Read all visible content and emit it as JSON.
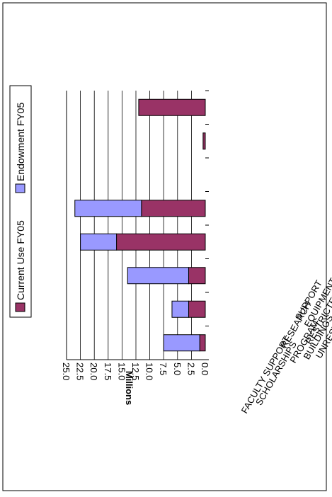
{
  "chart_data": {
    "type": "bar",
    "stacked": true,
    "orientation": "horizontal",
    "page_rotation": "rotated 90 degrees counter-clockwise",
    "ylabel": "Millions",
    "categories": [
      "FACULTY SUPPORT",
      "SCHOLARSHIPS",
      "RESEARCH SUPPORT",
      "PROGRAM SUPPORT",
      "EQUIPMENT",
      "BUILDINGS",
      "RESTRICTED - UNIVERSITY",
      "UNRESTRICTED - COLLEGES"
    ],
    "category_labels_as_printed": [
      "FACULTY SUPPORT",
      "SCHOLARSHIPS",
      "RESEARCH",
      "SUPPORT",
      "PROGRAM",
      "EQUIPMENT",
      "BUILDINGS",
      "RESTRICTED - UNIVERSITY",
      "UNRESTRICTED - COLLEGES"
    ],
    "series": [
      {
        "name": "Current Use FY05",
        "values": [
          1.0,
          3.0,
          3.0,
          16.0,
          11.5,
          0.0,
          0.4,
          12.0
        ]
      },
      {
        "name": "Endowment FY05",
        "values": [
          6.5,
          3.0,
          11.0,
          6.5,
          12.0,
          0.0,
          0.0,
          0.0
        ]
      }
    ],
    "colors": {
      "Current Use FY05": "#993366",
      "Endowment FY05": "#9999ff"
    },
    "xlim": [
      0,
      25
    ],
    "ticks": [
      "25.0",
      "22.5",
      "20.0",
      "17.5",
      "15.0",
      "12.5",
      "10.0",
      "7.5",
      "5.0",
      "2.5",
      "0.0"
    ],
    "tick_values": [
      25,
      22.5,
      20,
      17.5,
      15,
      12.5,
      10,
      7.5,
      5,
      2.5,
      0
    ],
    "grid": true,
    "legend_position": "top"
  }
}
